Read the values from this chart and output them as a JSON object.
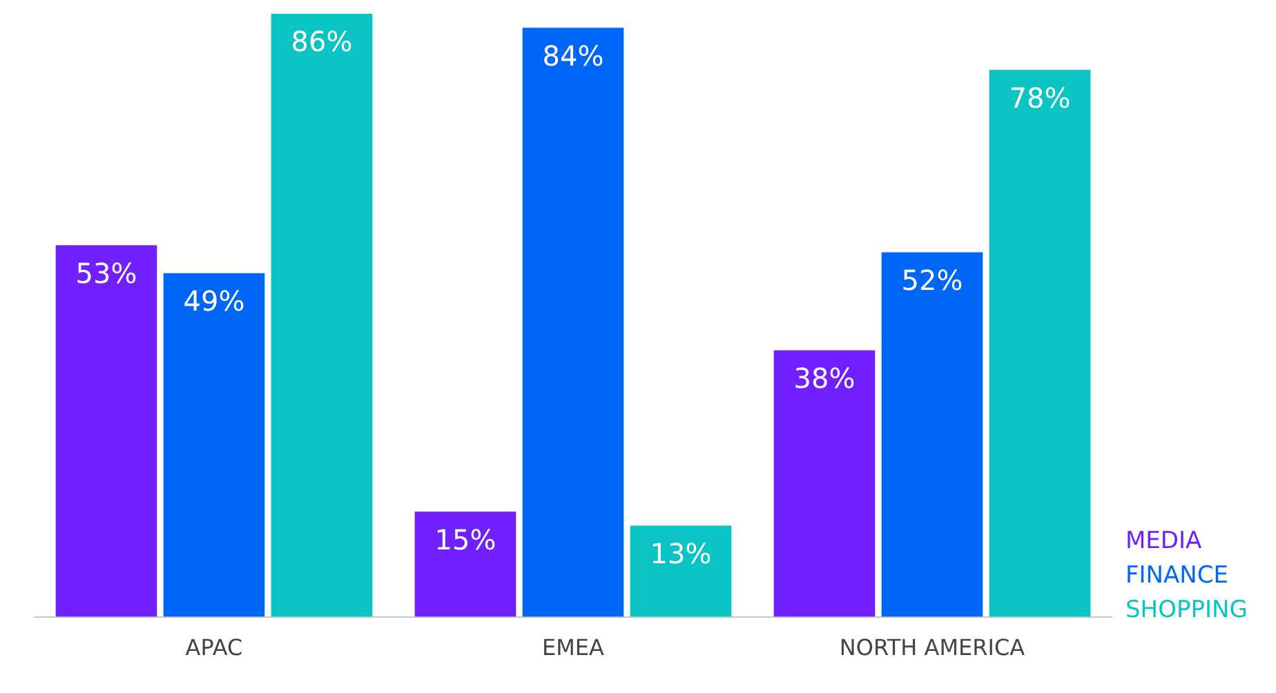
{
  "chart_data": {
    "type": "bar",
    "categories": [
      "APAC",
      "EMEA",
      "NORTH AMERICA"
    ],
    "series": [
      {
        "name": "MEDIA",
        "color": "#7020ff",
        "values": [
          53,
          15,
          38
        ],
        "value_labels": [
          "53%",
          "15%",
          "38%"
        ]
      },
      {
        "name": "FINANCE",
        "color": "#0066f5",
        "values": [
          49,
          84,
          52
        ],
        "value_labels": [
          "49%",
          "84%",
          "52%"
        ]
      },
      {
        "name": "SHOPPING",
        "color": "#0ac4c4",
        "values": [
          86,
          13,
          78
        ],
        "value_labels": [
          "86%",
          "13%",
          "78%"
        ]
      }
    ],
    "legend": "bottom right",
    "grid": false
  }
}
